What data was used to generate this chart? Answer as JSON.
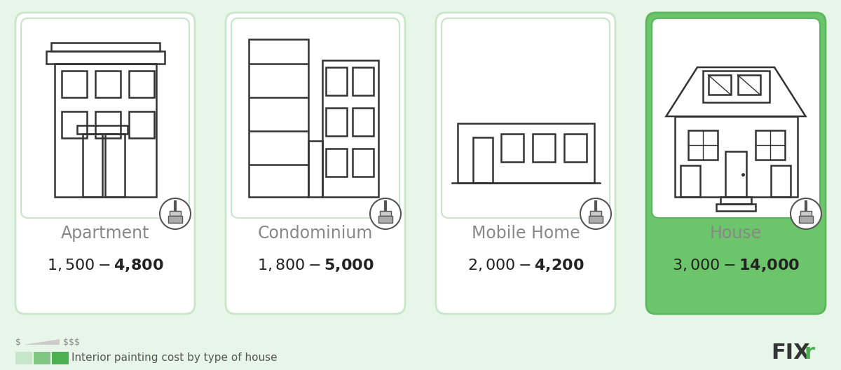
{
  "outer_bg": "#e8f5e9",
  "card_bg_white": "#ffffff",
  "card_border_light": "#c8e6c9",
  "card_green_top": "#d4edda",
  "card_highlight_bg": "#6cc56a",
  "card_highlight_border": "#5cb85c",
  "card_highlight_top": "#7dcf7a",
  "text_gray": "#888888",
  "text_dark": "#222222",
  "text_white": "#ffffff",
  "green_leg1": "#c8e6c9",
  "green_leg2": "#81c784",
  "green_leg3": "#4caf50",
  "fixr_black": "#333333",
  "fixr_green": "#4caf50",
  "line_color": "#333333",
  "categories": [
    "Apartment",
    "Condominium",
    "Mobile Home",
    "House"
  ],
  "price_ranges": [
    "$1,500 - $4,800",
    "$1,800 - $5,000",
    "$2,000 - $4,200",
    "$3,000 - $14,000"
  ],
  "highlighted": [
    false,
    false,
    false,
    true
  ],
  "legend_text": "Interior painting cost by type of house"
}
